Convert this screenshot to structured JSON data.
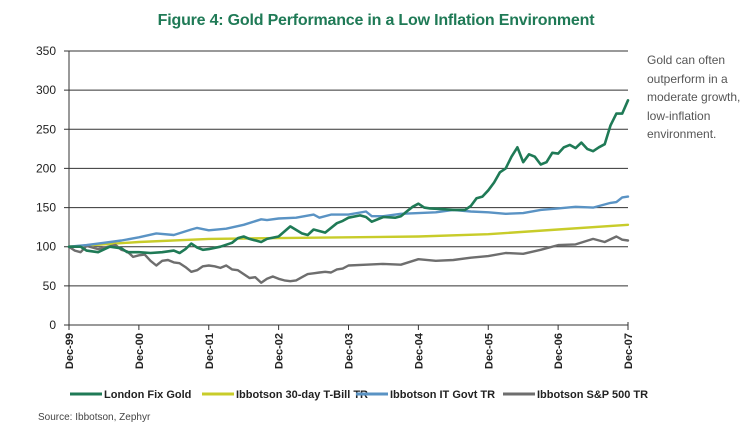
{
  "title": "Figure 4: Gold Performance in a Low Inflation Environment",
  "side_note": "Gold can often outperform in a moderate growth, low-inflation environment.",
  "source": "Source: Ibbotson, Zephyr",
  "colors": {
    "title": "#1f7a56",
    "gold": "#1f7a56",
    "tbill": "#c8cc2a",
    "govt": "#5a93c4",
    "sp500": "#6e6e6e",
    "grid": "#333333"
  },
  "chart_data": {
    "type": "line",
    "title": "Figure 4: Gold Performance in a Low Inflation Environment",
    "xlabel": "",
    "ylabel": "",
    "ylim": [
      0,
      350
    ],
    "yticks": [
      0,
      50,
      100,
      150,
      200,
      250,
      300,
      350
    ],
    "xlim": [
      "Dec-99",
      "Dec-07"
    ],
    "xticks": [
      "Dec-99",
      "Dec-00",
      "Dec-01",
      "Dec-02",
      "Dec-03",
      "Dec-04",
      "Dec-05",
      "Dec-06",
      "Dec-07"
    ],
    "grid": true,
    "legend_position": "bottom",
    "series": [
      {
        "name": "London Fix Gold",
        "color": "#1f7a56",
        "points": [
          [
            "Dec-99",
            100
          ],
          [
            "Feb-00",
            100
          ],
          [
            "Mar-00",
            95
          ],
          [
            "May-00",
            93
          ],
          [
            "Jul-00",
            100
          ],
          [
            "Sep-00",
            98
          ],
          [
            "Oct-00",
            93
          ],
          [
            "Dec-00",
            93
          ],
          [
            "Feb-01",
            92
          ],
          [
            "Apr-01",
            93
          ],
          [
            "Jun-01",
            95
          ],
          [
            "Jul-01",
            92
          ],
          [
            "Aug-01",
            97
          ],
          [
            "Sep-01",
            104
          ],
          [
            "Oct-01",
            99
          ],
          [
            "Nov-01",
            96
          ],
          [
            "Dec-01",
            97
          ],
          [
            "Feb-02",
            100
          ],
          [
            "Apr-02",
            105
          ],
          [
            "May-02",
            111
          ],
          [
            "Jun-02",
            113
          ],
          [
            "Jul-02",
            110
          ],
          [
            "Sep-02",
            106
          ],
          [
            "Oct-02",
            110
          ],
          [
            "Dec-02",
            113
          ],
          [
            "Feb-03",
            126
          ],
          [
            "Apr-03",
            117
          ],
          [
            "May-03",
            115
          ],
          [
            "Jun-03",
            122
          ],
          [
            "Aug-03",
            118
          ],
          [
            "Oct-03",
            130
          ],
          [
            "Nov-03",
            133
          ],
          [
            "Dec-03",
            137
          ],
          [
            "Feb-04",
            140
          ],
          [
            "Mar-04",
            138
          ],
          [
            "Apr-04",
            132
          ],
          [
            "Jun-04",
            138
          ],
          [
            "Aug-04",
            137
          ],
          [
            "Sep-04",
            139
          ],
          [
            "Oct-04",
            145
          ],
          [
            "Nov-04",
            151
          ],
          [
            "Dec-04",
            155
          ],
          [
            "Jan-05",
            150
          ],
          [
            "Feb-05",
            149
          ],
          [
            "Apr-05",
            148
          ],
          [
            "Jun-05",
            147
          ],
          [
            "Aug-05",
            147
          ],
          [
            "Sep-05",
            152
          ],
          [
            "Oct-05",
            162
          ],
          [
            "Nov-05",
            164
          ],
          [
            "Dec-05",
            172
          ],
          [
            "Jan-06",
            182
          ],
          [
            "Feb-06",
            195
          ],
          [
            "Mar-06",
            200
          ],
          [
            "Apr-06",
            215
          ],
          [
            "May-06",
            227
          ],
          [
            "Jun-06",
            208
          ],
          [
            "Jul-06",
            218
          ],
          [
            "Aug-06",
            215
          ],
          [
            "Sep-06",
            205
          ],
          [
            "Oct-06",
            208
          ],
          [
            "Nov-06",
            220
          ],
          [
            "Dec-06",
            219
          ],
          [
            "Jan-07",
            227
          ],
          [
            "Feb-07",
            230
          ],
          [
            "Mar-07",
            226
          ],
          [
            "Apr-07",
            233
          ],
          [
            "May-07",
            225
          ],
          [
            "Jun-07",
            222
          ],
          [
            "Jul-07",
            227
          ],
          [
            "Aug-07",
            231
          ],
          [
            "Sep-07",
            255
          ],
          [
            "Oct-07",
            270
          ],
          [
            "Nov-07",
            270
          ],
          [
            "Dec-07",
            287
          ]
        ]
      },
      {
        "name": "Ibbotson 30-day T-Bill TR",
        "color": "#c8cc2a",
        "points": [
          [
            "Dec-99",
            100
          ],
          [
            "Dec-00",
            106
          ],
          [
            "Dec-01",
            110
          ],
          [
            "Dec-02",
            111
          ],
          [
            "Dec-03",
            112
          ],
          [
            "Dec-04",
            113
          ],
          [
            "Dec-05",
            116
          ],
          [
            "Dec-06",
            122
          ],
          [
            "Dec-07",
            128
          ]
        ]
      },
      {
        "name": "Ibbotson IT Govt TR",
        "color": "#5a93c4",
        "points": [
          [
            "Dec-99",
            100
          ],
          [
            "Mar-00",
            102
          ],
          [
            "Jun-00",
            105
          ],
          [
            "Sep-00",
            108
          ],
          [
            "Dec-00",
            112
          ],
          [
            "Mar-01",
            117
          ],
          [
            "Jun-01",
            115
          ],
          [
            "Sep-01",
            122
          ],
          [
            "Oct-01",
            124
          ],
          [
            "Dec-01",
            121
          ],
          [
            "Mar-02",
            123
          ],
          [
            "Jun-02",
            128
          ],
          [
            "Sep-02",
            135
          ],
          [
            "Oct-02",
            134
          ],
          [
            "Dec-02",
            136
          ],
          [
            "Mar-03",
            137
          ],
          [
            "Jun-03",
            141
          ],
          [
            "Jul-03",
            137
          ],
          [
            "Sep-03",
            141
          ],
          [
            "Dec-03",
            141
          ],
          [
            "Mar-04",
            145
          ],
          [
            "Apr-04",
            139
          ],
          [
            "Jun-04",
            139
          ],
          [
            "Sep-04",
            142
          ],
          [
            "Dec-04",
            143
          ],
          [
            "Mar-05",
            144
          ],
          [
            "Jun-05",
            147
          ],
          [
            "Sep-05",
            145
          ],
          [
            "Dec-05",
            144
          ],
          [
            "Mar-06",
            142
          ],
          [
            "Jun-06",
            143
          ],
          [
            "Sep-06",
            147
          ],
          [
            "Dec-06",
            149
          ],
          [
            "Mar-07",
            151
          ],
          [
            "Jun-07",
            150
          ],
          [
            "Sep-07",
            156
          ],
          [
            "Oct-07",
            157
          ],
          [
            "Nov-07",
            163
          ],
          [
            "Dec-07",
            164
          ]
        ]
      },
      {
        "name": "Ibbotson S&P 500 TR",
        "color": "#6e6e6e",
        "points": [
          [
            "Dec-99",
            100
          ],
          [
            "Jan-00",
            95
          ],
          [
            "Feb-00",
            93
          ],
          [
            "Mar-00",
            101
          ],
          [
            "May-00",
            97
          ],
          [
            "Aug-00",
            102
          ],
          [
            "Sep-00",
            96
          ],
          [
            "Oct-00",
            94
          ],
          [
            "Nov-00",
            87
          ],
          [
            "Dec-00",
            89
          ],
          [
            "Jan-01",
            90
          ],
          [
            "Feb-01",
            82
          ],
          [
            "Mar-01",
            76
          ],
          [
            "Apr-01",
            82
          ],
          [
            "May-01",
            83
          ],
          [
            "Jun-01",
            80
          ],
          [
            "Jul-01",
            79
          ],
          [
            "Aug-01",
            74
          ],
          [
            "Sep-01",
            68
          ],
          [
            "Oct-01",
            70
          ],
          [
            "Nov-01",
            75
          ],
          [
            "Dec-01",
            76
          ],
          [
            "Jan-02",
            75
          ],
          [
            "Feb-02",
            73
          ],
          [
            "Mar-02",
            76
          ],
          [
            "Apr-02",
            71
          ],
          [
            "May-02",
            70
          ],
          [
            "Jun-02",
            65
          ],
          [
            "Jul-02",
            60
          ],
          [
            "Aug-02",
            61
          ],
          [
            "Sep-02",
            54
          ],
          [
            "Oct-02",
            59
          ],
          [
            "Nov-02",
            62
          ],
          [
            "Dec-02",
            59
          ],
          [
            "Jan-03",
            57
          ],
          [
            "Feb-03",
            56
          ],
          [
            "Mar-03",
            57
          ],
          [
            "Apr-03",
            61
          ],
          [
            "May-03",
            65
          ],
          [
            "Jun-03",
            66
          ],
          [
            "Jul-03",
            67
          ],
          [
            "Aug-03",
            68
          ],
          [
            "Sep-03",
            67
          ],
          [
            "Oct-03",
            71
          ],
          [
            "Nov-03",
            72
          ],
          [
            "Dec-03",
            76
          ],
          [
            "Mar-04",
            77
          ],
          [
            "Jun-04",
            78
          ],
          [
            "Sep-04",
            77
          ],
          [
            "Dec-04",
            84
          ],
          [
            "Mar-05",
            82
          ],
          [
            "Jun-05",
            83
          ],
          [
            "Sep-05",
            86
          ],
          [
            "Dec-05",
            88
          ],
          [
            "Mar-06",
            92
          ],
          [
            "Jun-06",
            91
          ],
          [
            "Sep-06",
            96
          ],
          [
            "Dec-06",
            102
          ],
          [
            "Mar-07",
            103
          ],
          [
            "Jun-07",
            110
          ],
          [
            "Aug-07",
            106
          ],
          [
            "Oct-07",
            113
          ],
          [
            "Nov-07",
            109
          ],
          [
            "Dec-07",
            108
          ]
        ]
      }
    ]
  }
}
